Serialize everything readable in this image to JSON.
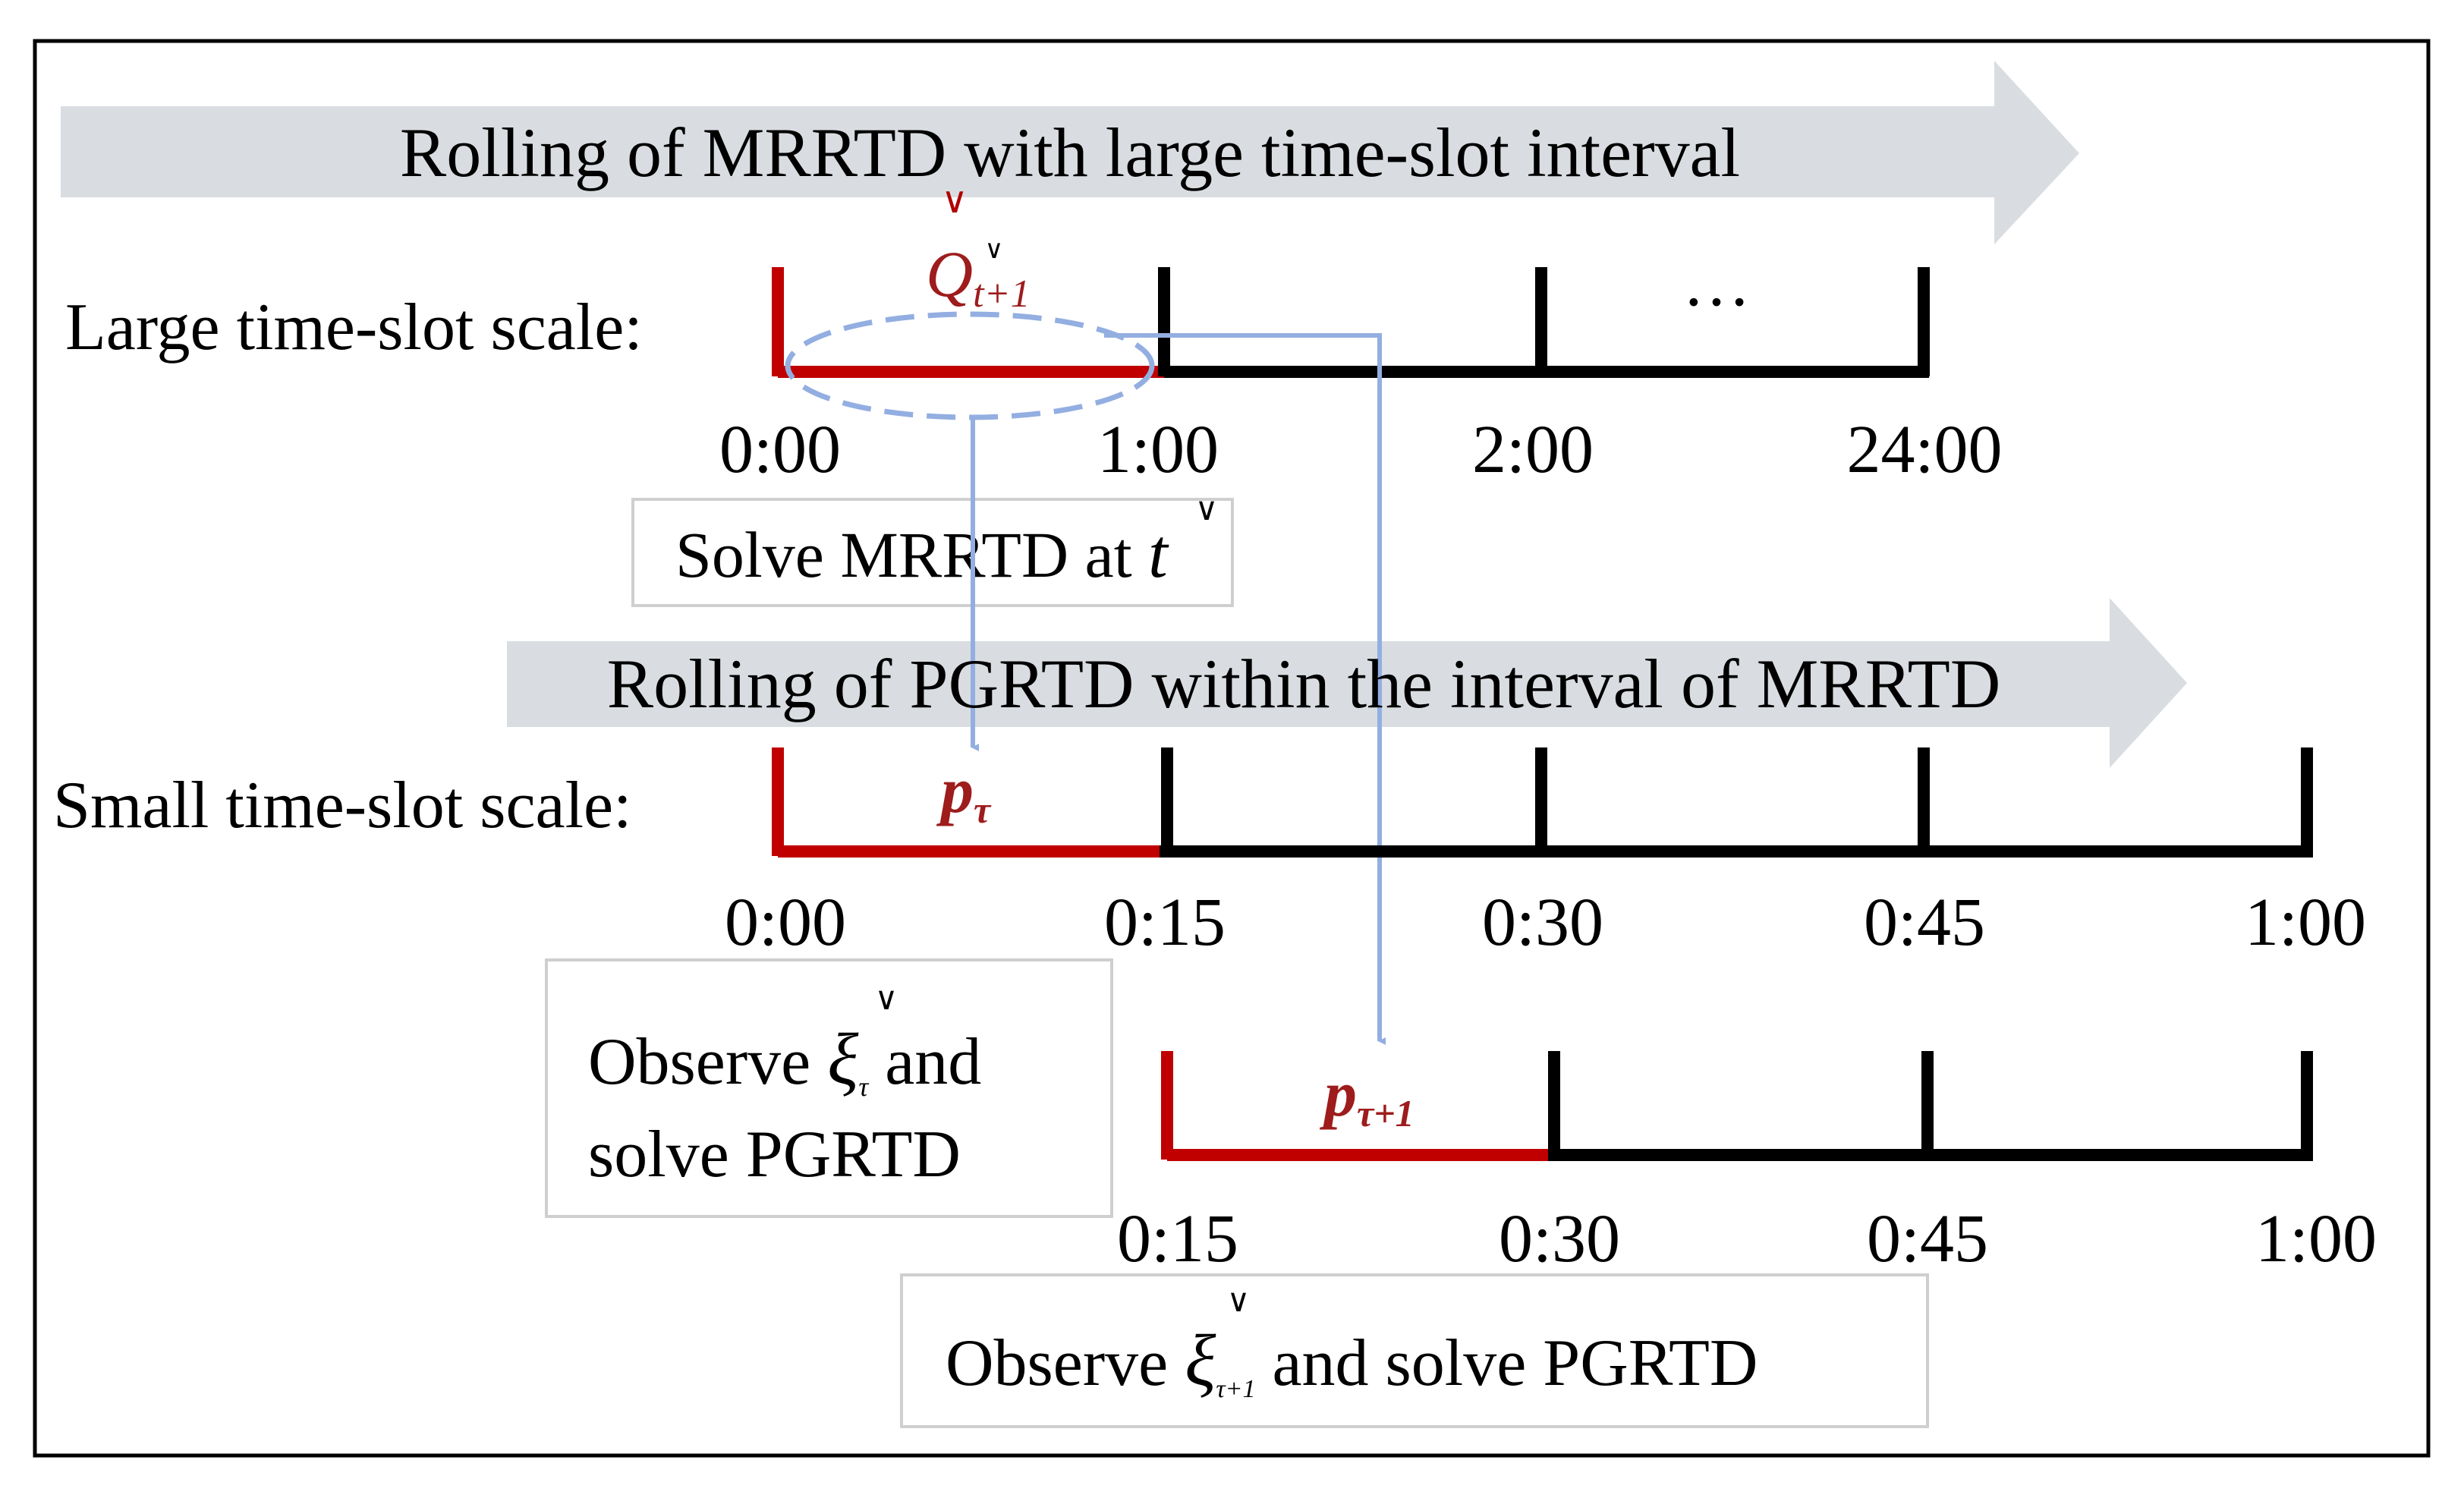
{
  "colors": {
    "timeline": "#000000",
    "current_slot": "#c00000",
    "current_symbol": "#9e1c1c",
    "arrow_band": "#d9dde1",
    "flow": "#93aee1",
    "box_border": "#cfcfcf"
  },
  "banner_large": "Rolling of MRRTD with large time-slot interval",
  "banner_small": "Rolling of PGRTD within the interval of MRRTD",
  "large_scale": {
    "label": "Large time-slot scale:",
    "ticks": [
      "0:00",
      "1:00",
      "2:00",
      "24:00"
    ],
    "ellipsis": "…",
    "symbol_main": "Q",
    "symbol_sub": "t+1",
    "check_mark": "∨"
  },
  "solve_mrrtd": {
    "text": "Solve MRRTD at ",
    "var": "t"
  },
  "small_scale": {
    "label": "Small time-slot scale:",
    "ticks": [
      "0:00",
      "0:15",
      "0:30",
      "0:45",
      "1:00"
    ],
    "symbol_main": "p",
    "symbol_sub": "τ"
  },
  "observe_1": {
    "line1_pre": "Observe ",
    "var": "ξ",
    "sub": "τ",
    "line1_post": " and",
    "line2": "solve PGRTD"
  },
  "second_row": {
    "ticks": [
      "0:15",
      "0:30",
      "0:45",
      "1:00"
    ],
    "symbol_main": "p",
    "symbol_sub": "τ+1"
  },
  "observe_2": {
    "pre": "Observe ",
    "var": "ξ",
    "sub": "τ+1",
    "post": " and solve PGRTD"
  }
}
